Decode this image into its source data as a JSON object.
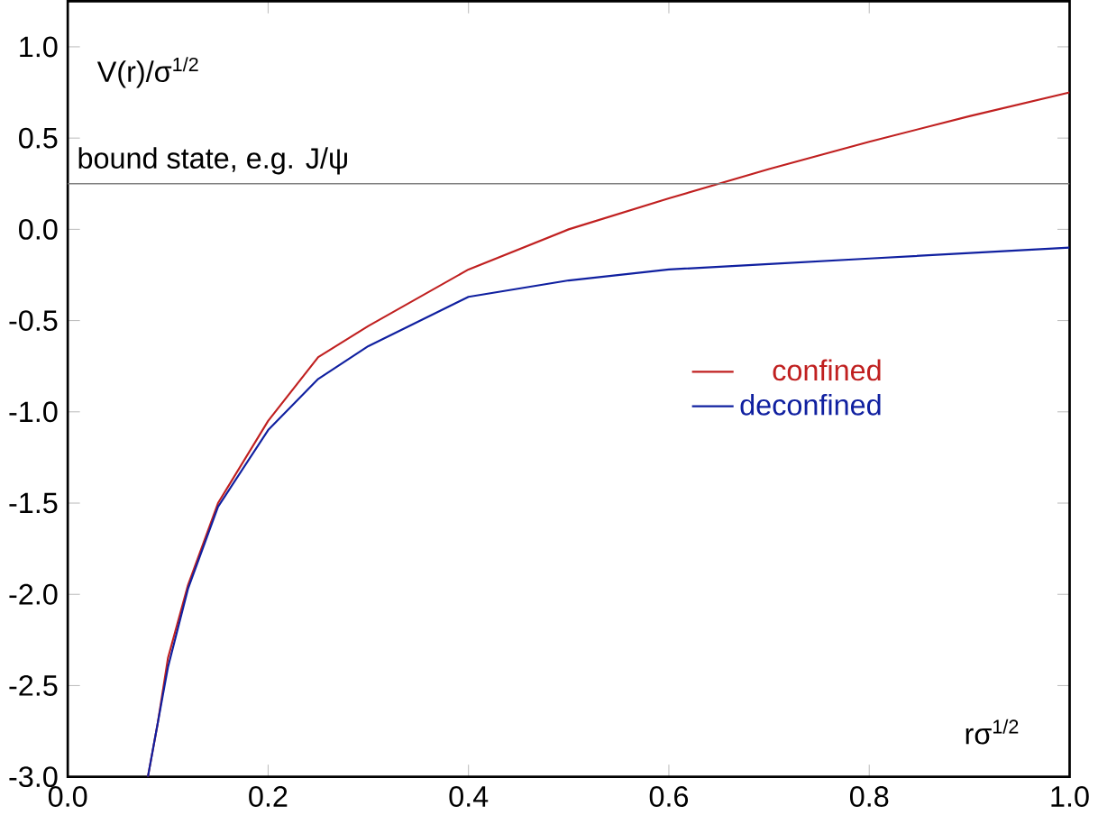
{
  "chart_data": {
    "type": "line",
    "xlabel": "rσ$^{1/2}$",
    "ylabel": "V(r)/σ$^{1/2}$",
    "xlim": [
      0.0,
      1.0
    ],
    "ylim": [
      -3.0,
      1.25
    ],
    "xticks": [
      {
        "value": 0,
        "label": "0.0"
      },
      0.2,
      0.4,
      0.6,
      0.8,
      {
        "value": 1,
        "label": "1.0"
      }
    ],
    "yticks": [
      {
        "value": -3,
        "label": "-3.0"
      },
      -2.5,
      {
        "value": -2,
        "label": "-2.0"
      },
      -1.5,
      {
        "value": -1,
        "label": "-1.0"
      },
      -0.5,
      {
        "value": 0,
        "label": "0.0"
      },
      0.5,
      {
        "value": 1,
        "label": "1.0"
      }
    ],
    "ref_lines": [
      {
        "axis": "y",
        "value": 0.25,
        "label": "bound state, e.g. J/ψ",
        "color": "#808080"
      }
    ],
    "legend": "right",
    "grid": false,
    "x": [
      0.08,
      0.09,
      0.1,
      0.12,
      0.15,
      0.2,
      0.25,
      0.3,
      0.4,
      0.5,
      0.6,
      0.7,
      0.8,
      0.9,
      1.0
    ],
    "series": [
      {
        "name": "confined",
        "color": "#c02020",
        "values": [
          -3.0,
          -2.7,
          -2.35,
          -1.95,
          -1.5,
          -1.05,
          -0.7,
          -0.53,
          -0.22,
          0.0,
          0.17,
          0.33,
          0.48,
          0.62,
          0.75
        ]
      },
      {
        "name": "deconfined",
        "color": "#1020a0",
        "values": [
          -3.0,
          -2.7,
          -2.4,
          -1.97,
          -1.52,
          -1.1,
          -0.82,
          -0.64,
          -0.37,
          -0.28,
          -0.22,
          -0.19,
          -0.16,
          -0.13,
          -0.1
        ]
      }
    ]
  }
}
